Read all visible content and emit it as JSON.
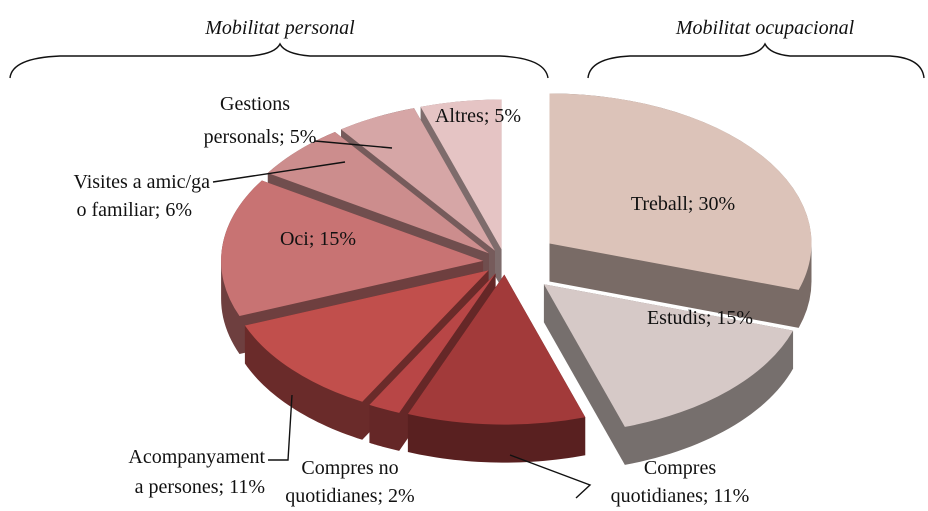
{
  "chart_data": {
    "type": "pie",
    "annotations": [
      "Mobilitat personal",
      "Mobilitat ocupacional"
    ],
    "labels": [
      [
        "Treball; 30%"
      ],
      [
        "Estudis; 15%"
      ],
      [
        "Compres",
        "quotidianes; 11%"
      ],
      [
        "Compres no",
        "quotidianes; 2%"
      ],
      [
        "Acompanyament",
        "a persones; 11%"
      ],
      [
        "Oci; 15%"
      ],
      [
        "Visites a amic/ga",
        "o familiar; 6%"
      ],
      [
        "Gestions",
        "personals; 5%"
      ],
      [
        "Altres; 5%"
      ]
    ],
    "values": [
      30,
      15,
      11,
      2,
      11,
      15,
      6,
      5,
      5
    ],
    "colors": [
      "#dcc3b9",
      "#d6c9c7",
      "#a23a3a",
      "#b84646",
      "#c14f4c",
      "#c87373",
      "#cc8d8d",
      "#d6a6a6",
      "#e5c4c4"
    ]
  }
}
